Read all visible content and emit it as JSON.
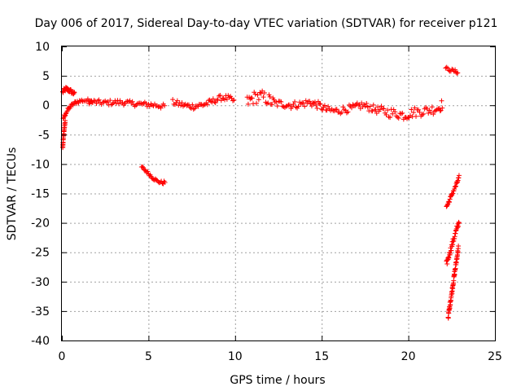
{
  "chart_data": {
    "type": "scatter",
    "title": "Day 006 of 2017, Sidereal Day-to-day VTEC variation (SDTVAR) for receiver p121",
    "xlabel": "GPS time / hours",
    "ylabel": "SDTVAR / TECUs",
    "xlim": [
      0,
      25
    ],
    "ylim": [
      -40,
      10
    ],
    "xticks": [
      0,
      5,
      10,
      15,
      20,
      25
    ],
    "yticks": [
      -40,
      -35,
      -30,
      -25,
      -20,
      -15,
      -10,
      -5,
      0,
      5,
      10
    ],
    "grid": true,
    "marker": "+",
    "marker_color": "#ff0000",
    "segments": [
      {
        "x": [
          0.05,
          0.15,
          0.25,
          0.35,
          0.45,
          0.55,
          0.65,
          0.75
        ],
        "y": [
          2.2,
          2.6,
          2.8,
          2.6,
          2.5,
          2.3,
          2.1,
          1.8
        ],
        "band": 0.7
      },
      {
        "x": [
          0.08,
          0.2,
          0.35,
          0.5,
          0.7,
          0.9,
          1.2,
          1.5,
          1.8
        ],
        "y": [
          -2.2,
          -1.5,
          -0.8,
          -0.2,
          0.3,
          0.6,
          0.8,
          0.8,
          0.7
        ],
        "band": 0.6
      },
      {
        "x": [
          0.05,
          0.08,
          0.12,
          0.16,
          0.2
        ],
        "y": [
          -7.2,
          -5.8,
          -4.5,
          -3.5,
          -2.6
        ],
        "band": 0.4
      },
      {
        "x": [
          1.5,
          2.0,
          2.5,
          3.0,
          3.5,
          4.0,
          4.5,
          5.0,
          5.5,
          6.0
        ],
        "y": [
          0.7,
          0.5,
          0.4,
          0.5,
          0.5,
          0.3,
          0.2,
          0.1,
          0.0,
          -0.3
        ],
        "band": 0.9
      },
      {
        "x": [
          4.6,
          4.9,
          5.2,
          5.5,
          5.8,
          6.0
        ],
        "y": [
          -10.5,
          -11.3,
          -12.2,
          -12.9,
          -13.2,
          -13.0
        ],
        "band": 0.5
      },
      {
        "x": [
          6.4,
          6.8,
          7.2,
          7.6,
          8.0,
          8.4,
          8.8,
          9.2,
          9.6,
          10.0
        ],
        "y": [
          0.5,
          0.2,
          -0.1,
          -0.2,
          0.0,
          0.3,
          0.8,
          1.3,
          1.2,
          0.6
        ],
        "band": 1.0
      },
      {
        "x": [
          10.7,
          11.1,
          11.5,
          11.9,
          12.3
        ],
        "y": [
          0.5,
          1.3,
          1.5,
          1.0,
          0.2
        ],
        "band": 2.2
      },
      {
        "x": [
          12.3,
          12.8,
          13.3,
          13.8,
          14.3,
          14.8,
          15.3,
          15.8,
          16.3,
          16.8,
          17.3,
          17.8,
          18.3
        ],
        "y": [
          0.3,
          0.2,
          0.0,
          0.2,
          0.5,
          0.0,
          -0.8,
          -1.0,
          -0.7,
          -0.5,
          0.0,
          -0.4,
          -0.9
        ],
        "band": 1.3
      },
      {
        "x": [
          18.3,
          18.8,
          19.3,
          19.8,
          20.3,
          20.8,
          21.3,
          21.8,
          22.0
        ],
        "y": [
          -0.9,
          -1.2,
          -1.4,
          -1.7,
          -1.2,
          -1.0,
          -0.8,
          -0.4,
          0.4
        ],
        "band": 1.7
      },
      {
        "x": [
          22.15,
          22.4,
          22.7,
          22.9
        ],
        "y": [
          6.3,
          6.0,
          5.8,
          5.5
        ],
        "band": 0.5
      },
      {
        "x": [
          22.2,
          22.4,
          22.6,
          22.8,
          22.95
        ],
        "y": [
          -17.3,
          -16.0,
          -14.6,
          -13.3,
          -12.0
        ],
        "band": 0.6
      },
      {
        "x": [
          22.2,
          22.4,
          22.6,
          22.8,
          22.95
        ],
        "y": [
          -27.0,
          -25.0,
          -23.0,
          -21.0,
          -19.6
        ],
        "band": 1.0
      },
      {
        "x": [
          22.3,
          22.5,
          22.7,
          22.9
        ],
        "y": [
          -36.0,
          -32.0,
          -28.0,
          -24.0
        ],
        "band": 0.9
      }
    ]
  }
}
